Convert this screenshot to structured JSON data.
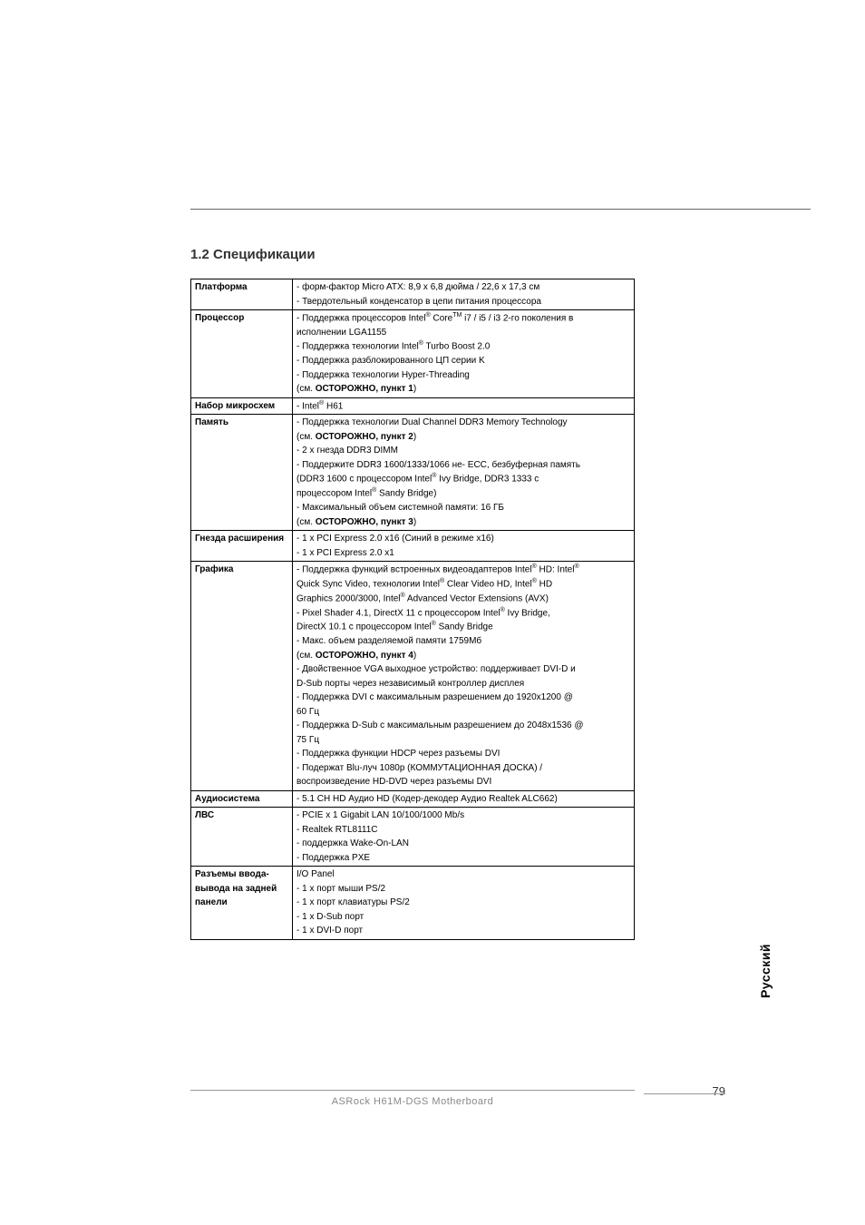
{
  "heading": "1.2   Спецификации",
  "side_tab": "Русский",
  "page_number": "79",
  "footer_text": "ASRock  H61M-DGS  Motherboard",
  "rows": [
    {
      "label": "Платформа",
      "lines": [
        "- форм-фактор Micro ATX: 8,9 x 6,8 дюйма / 22,6 x 17,3 см",
        "- Твердотельный конденсатор в цепи питания процессора"
      ]
    },
    {
      "label": "Процессор",
      "lines": [
        "- Поддержка процессоров Intel<sup>®</sup> Core<sup>TM</sup> i7 / i5 / i3 2-го поколения в",
        "  исполнении LGA1155",
        "- Поддержка технологии Intel<sup>®</sup> Turbo Boost 2.0",
        "- Поддержка разблокированного ЦП серии K",
        "- Поддержка технологии Hyper-Threading",
        "  (см. <b>ОСТОРОЖНО, пункт 1</b>)"
      ]
    },
    {
      "label": "Набор микросхем",
      "lines": [
        "- Intel<sup>®</sup> H61"
      ]
    },
    {
      "label": "Память",
      "lines": [
        "- Поддержка технологии Dual Channel DDR3 Memory Technology",
        "  (см. <b>ОСТОРОЖНО, пункт 2</b>)",
        "- 2 x гнезда DDR3 DIMM",
        "- Поддержите DDR3 1600/1333/1066 не- ECC, безбуферная память",
        "  (DDR3 1600 с процессором Intel<sup>®</sup> Ivy Bridge, DDR3 1333 с",
        "  процессором Intel<sup>®</sup> Sandy Bridge)",
        "- Максимальный объем системной памяти: 16 ГБ",
        "  (см. <b>ОСТОРОЖНО, пункт 3</b>)"
      ]
    },
    {
      "label": "Гнезда расширения",
      "lines": [
        "- 1 x PCI Express 2.0 x16 (Синий в режиме x16)",
        "- 1 x PCI Express 2.0 x1"
      ]
    },
    {
      "label": "Графика",
      "lines": [
        "- Поддержка функций встроенных видеоадаптеров Intel<sup>®</sup> HD: Intel<sup>®</sup>",
        "  Quick Sync Video, технологии Intel<sup>®</sup> Clear Video HD, Intel<sup>®</sup> HD",
        "  Graphics 2000/3000, Intel<sup>®</sup> Advanced Vector Extensions (AVX)",
        "- Pixel Shader 4.1, DirectX 11 с процессором Intel<sup>®</sup> Ivy Bridge,",
        "  DirectX 10.1 с процессором Intel<sup>®</sup> Sandy Bridge",
        "- Макс. объем разделяемой памяти 1759Мб",
        "  (см. <b>ОСТОРОЖНО, пункт 4</b>)",
        "- Двойственное VGA выходное устройство: поддерживает DVI-D и",
        "  D-Sub порты через независимый контроллер дисплея",
        "- Поддержка DVI с максимальным разрешением до 1920x1200 @",
        "  60 Гц",
        "- Поддержка D-Sub с максимальным разрешением до 2048x1536 @",
        "  75 Гц",
        "- Поддержка функции HDCP через разъемы DVI",
        "- Подержат Blu-луч 1080p (КОММУТАЦИОННАЯ ДОСКА) /",
        "  воспроизведение HD-DVD через разъемы DVI"
      ]
    },
    {
      "label": "Аудиосистема",
      "lines": [
        "- 5.1 CH HD Аудио HD (Кодер-декодер Аудио Realtek ALC662)"
      ]
    },
    {
      "label": "ЛВС",
      "lines": [
        "- PCIE x 1 Gigabit LAN 10/100/1000 Mb/s",
        "- Realtek RTL8111C",
        "- поддержка Wake-On-LAN",
        "- Поддержка PXE"
      ]
    },
    {
      "label": "Разъемы ввода-вывода на задней панели",
      "lines": [
        "I/O Panel",
        "- 1 x порт мыши PS/2",
        "- 1 x порт клавиатуры PS/2",
        "- 1 x D-Sub порт",
        "- 1 x DVI-D порт"
      ]
    }
  ]
}
